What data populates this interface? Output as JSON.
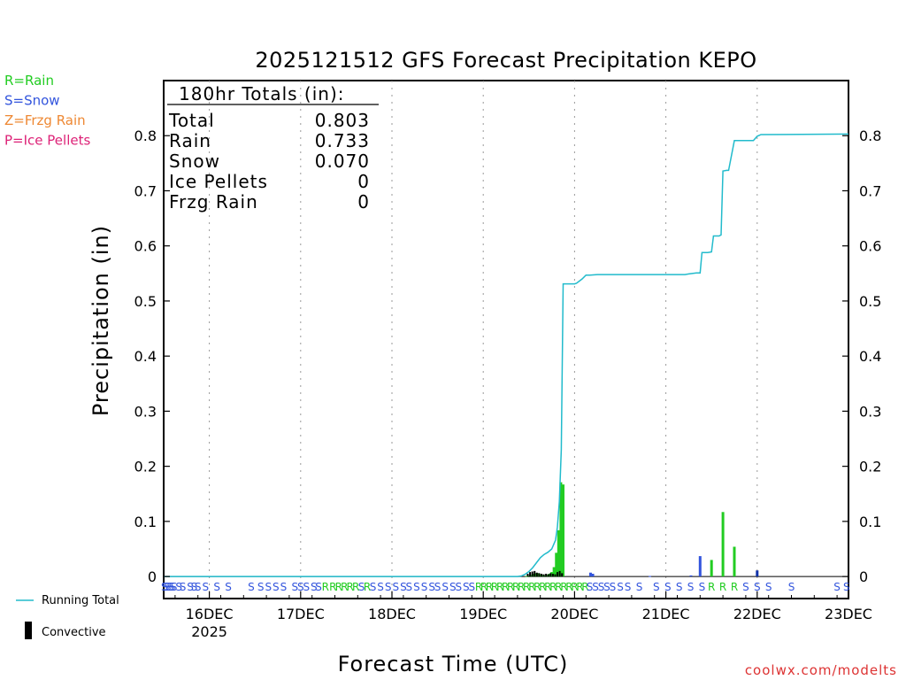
{
  "chart_data": {
    "type": "bar",
    "title": "2025121512 GFS Forecast Precipitation KEPO",
    "xlabel": "Forecast Time (UTC)",
    "ylabel": "Precipitation (in)",
    "ylim": [
      -0.04,
      0.9
    ],
    "y_ticks": [
      0,
      0.1,
      0.2,
      0.3,
      0.4,
      0.5,
      0.6,
      0.7,
      0.8
    ],
    "y_tick_labels": [
      "0",
      "0.1",
      "0.2",
      "0.3",
      "0.4",
      "0.5",
      "0.6",
      "0.7",
      "0.8"
    ],
    "x_unit": "forecast hour",
    "xlim": [
      0,
      180
    ],
    "x_ticks": [
      {
        "hour": 12,
        "label": "16DEC",
        "sub": "2025"
      },
      {
        "hour": 36,
        "label": "17DEC",
        "sub": ""
      },
      {
        "hour": 60,
        "label": "18DEC",
        "sub": ""
      },
      {
        "hour": 84,
        "label": "19DEC",
        "sub": ""
      },
      {
        "hour": 108,
        "label": "20DEC",
        "sub": ""
      },
      {
        "hour": 132,
        "label": "21DEC",
        "sub": ""
      },
      {
        "hour": 156,
        "label": "22DEC",
        "sub": ""
      },
      {
        "hour": 180,
        "label": "23DEC",
        "sub": ""
      }
    ],
    "grid": true,
    "legend": {
      "precip_types": [
        {
          "label": "R=Rain",
          "color": "#22cc22"
        },
        {
          "label": "S=Snow",
          "color": "#3355dd"
        },
        {
          "label": "Z=Frzg Rain",
          "color": "#ee8833"
        },
        {
          "label": "P=Ice Pellets",
          "color": "#dd2277"
        }
      ],
      "running_total_label": "Running Total",
      "convective_label": "Convective"
    },
    "totals": {
      "header": "180hr Totals (in):",
      "rows": [
        {
          "label": "Total",
          "value": "0.803"
        },
        {
          "label": "Rain",
          "value": "0.733"
        },
        {
          "label": "Snow",
          "value": "0.070"
        },
        {
          "label": "Ice Pellets",
          "value": "0"
        },
        {
          "label": "Frzg Rain",
          "value": "0"
        }
      ]
    },
    "bars": [
      {
        "hour": 95.4,
        "value": 0.001,
        "color": "#22cc22"
      },
      {
        "hour": 96.0,
        "value": 0.002,
        "color": "#22cc22"
      },
      {
        "hour": 96.6,
        "value": 0.003,
        "color": "#22cc22"
      },
      {
        "hour": 97.2,
        "value": 0.005,
        "color": "#22cc22"
      },
      {
        "hour": 97.8,
        "value": 0.006,
        "color": "#22cc22"
      },
      {
        "hour": 98.4,
        "value": 0.006,
        "color": "#22cc22"
      },
      {
        "hour": 99.0,
        "value": 0.004,
        "color": "#22cc22"
      },
      {
        "hour": 99.6,
        "value": 0.003,
        "color": "#22cc22"
      },
      {
        "hour": 100.2,
        "value": 0.002,
        "color": "#22cc22"
      },
      {
        "hour": 100.8,
        "value": 0.003,
        "color": "#22cc22"
      },
      {
        "hour": 101.4,
        "value": 0.005,
        "color": "#22cc22"
      },
      {
        "hour": 102.0,
        "value": 0.008,
        "color": "#22cc22"
      },
      {
        "hour": 102.6,
        "value": 0.017,
        "color": "#22cc22"
      },
      {
        "hour": 103.2,
        "value": 0.043,
        "color": "#22cc22"
      },
      {
        "hour": 103.8,
        "value": 0.084,
        "color": "#22cc22"
      },
      {
        "hour": 104.4,
        "value": 0.171,
        "color": "#22cc22"
      },
      {
        "hour": 105.0,
        "value": 0.167,
        "color": "#22cc22"
      },
      {
        "hour": 112.2,
        "value": 0.007,
        "color": "#3355dd"
      },
      {
        "hour": 112.8,
        "value": 0.005,
        "color": "#3355dd"
      },
      {
        "hour": 127.8,
        "value": 0.001,
        "color": "#3355dd"
      },
      {
        "hour": 138.6,
        "value": 0.002,
        "color": "#3355dd"
      },
      {
        "hour": 141.0,
        "value": 0.037,
        "color": "#3355dd"
      },
      {
        "hour": 144.0,
        "value": 0.03,
        "color": "#22cc22"
      },
      {
        "hour": 147.0,
        "value": 0.117,
        "color": "#22cc22"
      },
      {
        "hour": 150.0,
        "value": 0.054,
        "color": "#22cc22"
      },
      {
        "hour": 156.0,
        "value": 0.011,
        "color": "#1133aa"
      }
    ],
    "convective_bars": [
      {
        "hour": 95.7,
        "value": 0.005
      },
      {
        "hour": 96.3,
        "value": 0.008
      },
      {
        "hour": 96.9,
        "value": 0.009
      },
      {
        "hour": 97.5,
        "value": 0.01
      },
      {
        "hour": 98.1,
        "value": 0.007
      },
      {
        "hour": 98.7,
        "value": 0.006
      },
      {
        "hour": 99.3,
        "value": 0.005
      },
      {
        "hour": 99.9,
        "value": 0.004
      },
      {
        "hour": 100.5,
        "value": 0.005
      },
      {
        "hour": 101.1,
        "value": 0.004
      },
      {
        "hour": 101.7,
        "value": 0.006
      },
      {
        "hour": 102.3,
        "value": 0.005
      },
      {
        "hour": 102.9,
        "value": 0.004
      },
      {
        "hour": 103.5,
        "value": 0.008
      },
      {
        "hour": 104.1,
        "value": 0.01
      },
      {
        "hour": 104.7,
        "value": 0.006
      }
    ],
    "running_total": {
      "x": [
        0,
        93,
        94,
        95,
        96,
        97,
        98,
        99,
        100,
        101,
        102,
        103,
        103.5,
        104,
        104.5,
        105,
        108,
        108.5,
        110,
        111,
        112,
        114,
        130,
        134.5,
        137,
        138,
        140,
        141,
        141.5,
        143,
        144,
        144.5,
        146,
        146.5,
        147,
        148,
        148.5,
        150,
        151,
        153,
        155,
        156,
        157,
        180
      ],
      "y": [
        0,
        0,
        0.001,
        0.004,
        0.009,
        0.016,
        0.025,
        0.034,
        0.04,
        0.044,
        0.05,
        0.066,
        0.09,
        0.136,
        0.23,
        0.531,
        0.531,
        0.532,
        0.54,
        0.547,
        0.547,
        0.548,
        0.548,
        0.548,
        0.548,
        0.549,
        0.551,
        0.551,
        0.588,
        0.588,
        0.589,
        0.618,
        0.618,
        0.62,
        0.736,
        0.737,
        0.737,
        0.791,
        0.791,
        0.791,
        0.791,
        0.799,
        0.802,
        0.803
      ]
    },
    "precip_type_letters": [
      {
        "hour": 0.2,
        "letter": "S"
      },
      {
        "hour": 0.6,
        "letter": "S"
      },
      {
        "hour": 1.1,
        "letter": "S"
      },
      {
        "hour": 1.7,
        "letter": "S"
      },
      {
        "hour": 2.2,
        "letter": "S"
      },
      {
        "hour": 2.7,
        "letter": "S"
      },
      {
        "hour": 4.0,
        "letter": "S"
      },
      {
        "hour": 5.0,
        "letter": "S"
      },
      {
        "hour": 7.0,
        "letter": "S"
      },
      {
        "hour": 8.0,
        "letter": "S"
      },
      {
        "hour": 9.0,
        "letter": "S"
      },
      {
        "hour": 11.0,
        "letter": "S"
      },
      {
        "hour": 14.0,
        "letter": "S"
      },
      {
        "hour": 17.0,
        "letter": "S"
      },
      {
        "hour": 23.0,
        "letter": "S"
      },
      {
        "hour": 25.5,
        "letter": "S"
      },
      {
        "hour": 27.5,
        "letter": "S"
      },
      {
        "hour": 29.5,
        "letter": "S"
      },
      {
        "hour": 31.5,
        "letter": "S"
      },
      {
        "hour": 34.5,
        "letter": "S"
      },
      {
        "hour": 36.0,
        "letter": "S"
      },
      {
        "hour": 37.5,
        "letter": "S"
      },
      {
        "hour": 39.5,
        "letter": "S"
      },
      {
        "hour": 40.7,
        "letter": "S"
      },
      {
        "hour": 42.5,
        "letter": "R"
      },
      {
        "hour": 44.5,
        "letter": "R"
      },
      {
        "hour": 46.0,
        "letter": "R"
      },
      {
        "hour": 47.5,
        "letter": "R"
      },
      {
        "hour": 49.0,
        "letter": "R"
      },
      {
        "hour": 50.5,
        "letter": "R"
      },
      {
        "hour": 52.0,
        "letter": "S"
      },
      {
        "hour": 53.5,
        "letter": "R"
      },
      {
        "hour": 55.0,
        "letter": "S"
      },
      {
        "hour": 57.0,
        "letter": "S"
      },
      {
        "hour": 59.0,
        "letter": "S"
      },
      {
        "hour": 61.0,
        "letter": "S"
      },
      {
        "hour": 63.0,
        "letter": "S"
      },
      {
        "hour": 64.5,
        "letter": "S"
      },
      {
        "hour": 66.5,
        "letter": "S"
      },
      {
        "hour": 68.5,
        "letter": "S"
      },
      {
        "hour": 70.5,
        "letter": "S"
      },
      {
        "hour": 72.0,
        "letter": "S"
      },
      {
        "hour": 74.0,
        "letter": "S"
      },
      {
        "hour": 76.0,
        "letter": "S"
      },
      {
        "hour": 77.5,
        "letter": "S"
      },
      {
        "hour": 79.5,
        "letter": "S"
      },
      {
        "hour": 81.0,
        "letter": "S"
      },
      {
        "hour": 82.8,
        "letter": "R"
      },
      {
        "hour": 84.2,
        "letter": "R"
      },
      {
        "hour": 85.6,
        "letter": "R"
      },
      {
        "hour": 87.0,
        "letter": "R"
      },
      {
        "hour": 88.4,
        "letter": "R"
      },
      {
        "hour": 89.8,
        "letter": "R"
      },
      {
        "hour": 91.2,
        "letter": "R"
      },
      {
        "hour": 92.6,
        "letter": "R"
      },
      {
        "hour": 94.0,
        "letter": "R"
      },
      {
        "hour": 95.4,
        "letter": "R"
      },
      {
        "hour": 96.8,
        "letter": "R"
      },
      {
        "hour": 98.2,
        "letter": "R"
      },
      {
        "hour": 99.6,
        "letter": "R"
      },
      {
        "hour": 101.0,
        "letter": "R"
      },
      {
        "hour": 102.4,
        "letter": "R"
      },
      {
        "hour": 103.8,
        "letter": "R"
      },
      {
        "hour": 105.2,
        "letter": "R"
      },
      {
        "hour": 106.6,
        "letter": "R"
      },
      {
        "hour": 108.0,
        "letter": "R"
      },
      {
        "hour": 109.4,
        "letter": "R"
      },
      {
        "hour": 110.8,
        "letter": "R"
      },
      {
        "hour": 112.0,
        "letter": "S"
      },
      {
        "hour": 113.5,
        "letter": "S"
      },
      {
        "hour": 115.0,
        "letter": "S"
      },
      {
        "hour": 116.5,
        "letter": "S"
      },
      {
        "hour": 118.0,
        "letter": "S"
      },
      {
        "hour": 120.0,
        "letter": "S"
      },
      {
        "hour": 122.0,
        "letter": "S"
      },
      {
        "hour": 125.0,
        "letter": "S"
      },
      {
        "hour": 129.5,
        "letter": "S"
      },
      {
        "hour": 132.5,
        "letter": "S"
      },
      {
        "hour": 135.5,
        "letter": "S"
      },
      {
        "hour": 138.5,
        "letter": "S"
      },
      {
        "hour": 141.5,
        "letter": "S"
      },
      {
        "hour": 144.0,
        "letter": "R"
      },
      {
        "hour": 147.0,
        "letter": "R"
      },
      {
        "hour": 150.0,
        "letter": "R"
      },
      {
        "hour": 153.0,
        "letter": "S"
      },
      {
        "hour": 156.0,
        "letter": "S"
      },
      {
        "hour": 159.0,
        "letter": "S"
      },
      {
        "hour": 165.0,
        "letter": "S"
      },
      {
        "hour": 177.0,
        "letter": "S"
      },
      {
        "hour": 179.5,
        "letter": "S"
      }
    ],
    "credit": "coolwx.com/modelts",
    "colors": {
      "rain": "#22cc22",
      "snow": "#3355dd",
      "frzg_rain": "#ee8833",
      "ice_pellets": "#dd2277",
      "running_total": "#22bbcc",
      "convective": "#000000",
      "credit": "#dd3333"
    }
  }
}
